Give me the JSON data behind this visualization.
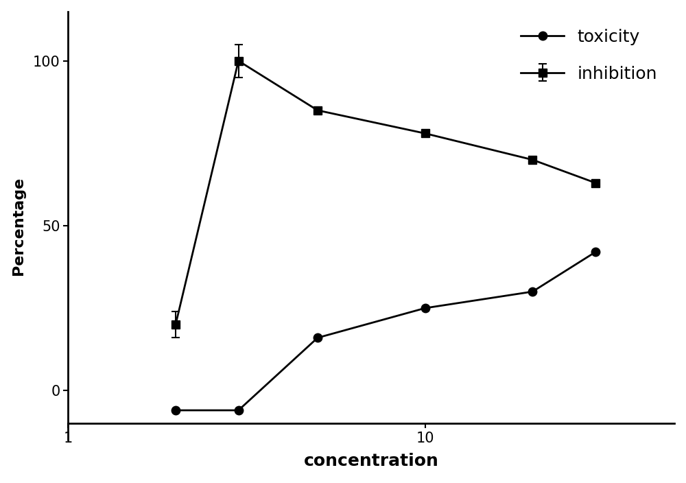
{
  "x_values": [
    2,
    3,
    5,
    10,
    20,
    30
  ],
  "toxicity_y": [
    -6,
    -6,
    16,
    25,
    30,
    42
  ],
  "inhibition_y": [
    20,
    100,
    85,
    78,
    70,
    63
  ],
  "inhibition_yerr_low": [
    4,
    5,
    0,
    0,
    0,
    0
  ],
  "inhibition_yerr_high": [
    4,
    5,
    0,
    0,
    0,
    0
  ],
  "toxicity_color": "#000000",
  "inhibition_color": "#000000",
  "xlabel": "concentration",
  "ylabel": "Percentage",
  "xlim_log": [
    1,
    50
  ],
  "ylim": [
    -15,
    115
  ],
  "yticks": [
    0,
    50,
    100
  ],
  "xticks": [
    1,
    10
  ],
  "spine_bottom_y": -10,
  "background_color": "#ffffff",
  "legend_toxicity": "toxicity",
  "legend_inhibition": "inhibition",
  "linewidth": 2.0,
  "markersize": 9,
  "xlabel_fontsize": 18,
  "ylabel_fontsize": 16,
  "tick_fontsize": 15,
  "legend_fontsize": 18
}
